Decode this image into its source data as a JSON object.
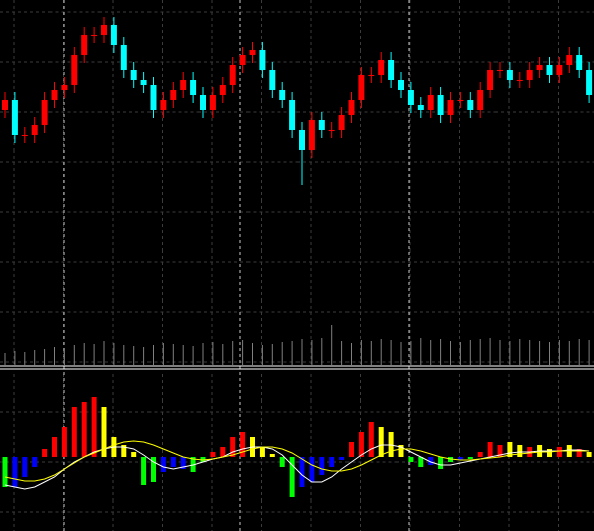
{
  "chart_data": [
    {
      "type": "candlestick",
      "open": [
        255,
        265,
        230,
        230,
        240,
        265,
        275,
        280,
        310,
        330,
        330,
        340,
        320,
        295,
        285,
        280,
        255,
        265,
        275,
        285,
        270,
        255,
        270,
        280,
        300,
        310,
        315,
        295,
        275,
        265,
        235,
        215,
        245,
        235,
        235,
        250,
        265,
        290,
        290,
        305,
        285,
        275,
        260,
        255,
        270,
        250,
        265,
        265,
        255,
        275,
        295,
        295,
        285,
        285,
        295,
        300,
        290,
        300,
        310,
        295
      ],
      "high": [
        273,
        273,
        238,
        248,
        273,
        283,
        288,
        318,
        338,
        338,
        348,
        348,
        328,
        303,
        293,
        288,
        273,
        283,
        293,
        293,
        278,
        278,
        288,
        308,
        318,
        323,
        323,
        303,
        283,
        273,
        243,
        253,
        253,
        243,
        258,
        273,
        298,
        298,
        313,
        313,
        293,
        283,
        268,
        278,
        278,
        273,
        273,
        273,
        283,
        303,
        303,
        303,
        293,
        303,
        308,
        308,
        308,
        318,
        318,
        303
      ],
      "low": [
        247,
        222,
        222,
        222,
        232,
        257,
        267,
        272,
        302,
        322,
        322,
        312,
        287,
        277,
        272,
        247,
        247,
        257,
        267,
        262,
        247,
        247,
        262,
        272,
        292,
        302,
        287,
        267,
        257,
        227,
        180,
        207,
        227,
        227,
        227,
        242,
        257,
        282,
        282,
        277,
        267,
        252,
        247,
        247,
        242,
        242,
        257,
        247,
        247,
        267,
        287,
        277,
        277,
        277,
        287,
        282,
        282,
        292,
        287,
        262
      ],
      "close": [
        265,
        230,
        230,
        240,
        265,
        275,
        280,
        310,
        330,
        330,
        340,
        320,
        295,
        285,
        280,
        255,
        265,
        275,
        285,
        270,
        255,
        270,
        280,
        300,
        310,
        315,
        295,
        275,
        265,
        235,
        215,
        245,
        235,
        235,
        250,
        265,
        290,
        290,
        305,
        285,
        275,
        260,
        255,
        270,
        250,
        265,
        265,
        255,
        275,
        295,
        295,
        285,
        285,
        295,
        300,
        290,
        300,
        310,
        295,
        270
      ],
      "up_color": "#ff0000",
      "down_color": "#00ffff",
      "ylim": [
        0,
        365
      ],
      "volume": {
        "color": "#808080",
        "ylim": [
          0,
          365
        ],
        "values": [
          12,
          14,
          13,
          15,
          16,
          18,
          17,
          20,
          22,
          21,
          24,
          22,
          20,
          19,
          18,
          20,
          22,
          21,
          20,
          19,
          22,
          23,
          21,
          24,
          25,
          22,
          20,
          21,
          23,
          24,
          26,
          25,
          27,
          40,
          24,
          22,
          25,
          24,
          26,
          25,
          23,
          24,
          27,
          25,
          26,
          24,
          23,
          25,
          26,
          27,
          25,
          24,
          26,
          25,
          24,
          23,
          25,
          24,
          26,
          25
        ]
      }
    },
    {
      "type": "macd",
      "ylim": [
        -74,
        85
      ],
      "histogram": {
        "values": [
          -30,
          -30,
          -20,
          -10,
          8,
          20,
          30,
          50,
          55,
          60,
          50,
          20,
          12,
          5,
          -28,
          -25,
          -15,
          -10,
          -12,
          -15,
          -5,
          5,
          10,
          20,
          25,
          20,
          10,
          3,
          -10,
          -40,
          -30,
          -25,
          -18,
          -10,
          -3,
          15,
          25,
          35,
          30,
          25,
          12,
          -5,
          -10,
          -8,
          -12,
          -5,
          -3,
          -2,
          5,
          15,
          12,
          15,
          12,
          10,
          12,
          8,
          10,
          12,
          8,
          5
        ],
        "colors": [
          "#00ff00",
          "#0000ff",
          "#0000ff",
          "#0000ff",
          "#ff0000",
          "#ff0000",
          "#ff0000",
          "#ff0000",
          "#ff0000",
          "#ff0000",
          "#ffff00",
          "#ffff00",
          "#ffff00",
          "#ffff00",
          "#00ff00",
          "#00ff00",
          "#0000ff",
          "#0000ff",
          "#0000ff",
          "#00ff00",
          "#00ff00",
          "#ff0000",
          "#ff0000",
          "#ff0000",
          "#ff0000",
          "#ffff00",
          "#ffff00",
          "#ffff00",
          "#00ff00",
          "#00ff00",
          "#0000ff",
          "#0000ff",
          "#0000ff",
          "#0000ff",
          "#0000ff",
          "#ff0000",
          "#ff0000",
          "#ff0000",
          "#ffff00",
          "#ffff00",
          "#ffff00",
          "#00ff00",
          "#00ff00",
          "#0000ff",
          "#00ff00",
          "#00ff00",
          "#0000ff",
          "#00ff00",
          "#ff0000",
          "#ff0000",
          "#ff0000",
          "#ffff00",
          "#ffff00",
          "#ff0000",
          "#ffff00",
          "#ffff00",
          "#ff0000",
          "#ffff00",
          "#ff0000",
          "#ffff00"
        ]
      },
      "series": [
        {
          "color": "#ffffff",
          "values": [
            -28,
            -30,
            -32,
            -30,
            -25,
            -20,
            -12,
            -5,
            0,
            5,
            8,
            10,
            10,
            8,
            2,
            -5,
            -10,
            -12,
            -10,
            -8,
            -5,
            -2,
            0,
            5,
            8,
            10,
            10,
            8,
            2,
            -8,
            -18,
            -25,
            -25,
            -20,
            -12,
            -5,
            2,
            8,
            12,
            12,
            10,
            5,
            0,
            -5,
            -8,
            -8,
            -6,
            -4,
            -2,
            0,
            2,
            4,
            5,
            5,
            6,
            6,
            6,
            7,
            7,
            6
          ]
        },
        {
          "color": "#ffff00",
          "values": [
            -20,
            -22,
            -24,
            -24,
            -22,
            -18,
            -12,
            -6,
            0,
            4,
            8,
            12,
            15,
            16,
            15,
            12,
            8,
            4,
            0,
            -2,
            -3,
            -2,
            0,
            2,
            5,
            8,
            10,
            10,
            8,
            4,
            -2,
            -8,
            -12,
            -14,
            -14,
            -12,
            -8,
            -3,
            2,
            6,
            8,
            8,
            6,
            3,
            0,
            -2,
            -3,
            -3,
            -2,
            -1,
            0,
            2,
            3,
            4,
            5,
            5,
            6,
            6,
            6,
            6
          ]
        }
      ]
    }
  ]
}
